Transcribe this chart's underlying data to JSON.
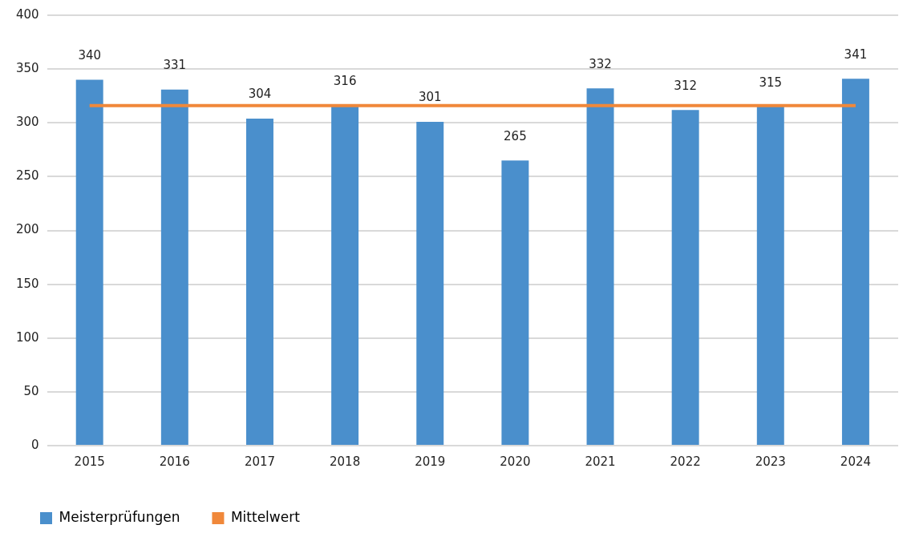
{
  "chart_data": {
    "type": "bar",
    "categories": [
      "2015",
      "2016",
      "2017",
      "2018",
      "2019",
      "2020",
      "2021",
      "2022",
      "2023",
      "2024"
    ],
    "series": [
      {
        "name": "Meisterprüfungen",
        "color": "#4a8fcc",
        "values": [
          340,
          331,
          304,
          316,
          301,
          265,
          332,
          312,
          315,
          341
        ],
        "value_labels": [
          "340",
          "331",
          "304",
          "316",
          "301",
          "265",
          "332",
          "312",
          "315",
          "341"
        ]
      },
      {
        "name": "Mittelwert",
        "type": "line",
        "color": "#f0883a",
        "values": [
          316,
          316,
          316,
          316,
          316,
          316,
          316,
          316,
          316,
          316
        ]
      }
    ],
    "ylim": [
      0,
      400
    ],
    "yticks": [
      0,
      50,
      100,
      150,
      200,
      250,
      300,
      350,
      400
    ],
    "grid": "y",
    "legend": "bottom left",
    "marker": "none"
  }
}
